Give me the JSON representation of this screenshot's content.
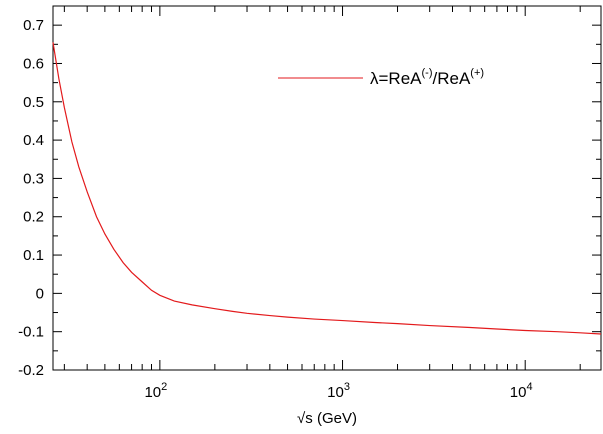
{
  "chart_data": {
    "type": "line",
    "title": "",
    "xlabel": "√s (GeV)",
    "ylabel": "",
    "x_scale": "log",
    "xlim": [
      26,
      26000
    ],
    "ylim": [
      -0.2,
      0.75
    ],
    "x_ticks": [
      {
        "value": 100,
        "base": "10",
        "exp": "2"
      },
      {
        "value": 1000,
        "base": "10",
        "exp": "3"
      },
      {
        "value": 10000,
        "base": "10",
        "exp": "4"
      }
    ],
    "y_ticks": [
      {
        "value": 0.7,
        "label": "0.7"
      },
      {
        "value": 0.6,
        "label": "0.6"
      },
      {
        "value": 0.5,
        "label": "0.5"
      },
      {
        "value": 0.4,
        "label": "0.4"
      },
      {
        "value": 0.3,
        "label": "0.3"
      },
      {
        "value": 0.2,
        "label": "0.2"
      },
      {
        "value": 0.1,
        "label": "0.1"
      },
      {
        "value": 0,
        "label": "0"
      },
      {
        "value": -0.1,
        "label": "-0.1"
      },
      {
        "value": -0.2,
        "label": "-0.2"
      }
    ],
    "grid": false,
    "legend_position": "top-right",
    "series": [
      {
        "name": "λ=ReA(-)/ReA(+)",
        "color": "#e31a1c",
        "x": [
          26,
          28,
          30,
          33,
          36,
          40,
          45,
          50,
          56,
          63,
          70,
          80,
          90,
          100,
          120,
          150,
          200,
          250,
          300,
          400,
          500,
          700,
          1000,
          1500,
          2000,
          3000,
          5000,
          7000,
          10000,
          15000,
          20000,
          26000
        ],
        "y": [
          0.655,
          0.56,
          0.485,
          0.395,
          0.33,
          0.265,
          0.2,
          0.155,
          0.115,
          0.08,
          0.055,
          0.03,
          0.008,
          -0.005,
          -0.02,
          -0.03,
          -0.04,
          -0.047,
          -0.052,
          -0.058,
          -0.062,
          -0.067,
          -0.071,
          -0.076,
          -0.079,
          -0.084,
          -0.089,
          -0.093,
          -0.097,
          -0.1,
          -0.103,
          -0.106
        ]
      }
    ],
    "legend": {
      "lambda": "λ",
      "eq": "=ReA",
      "sup1": "(-)",
      "mid": "/ReA",
      "sup2": "(+)"
    }
  }
}
